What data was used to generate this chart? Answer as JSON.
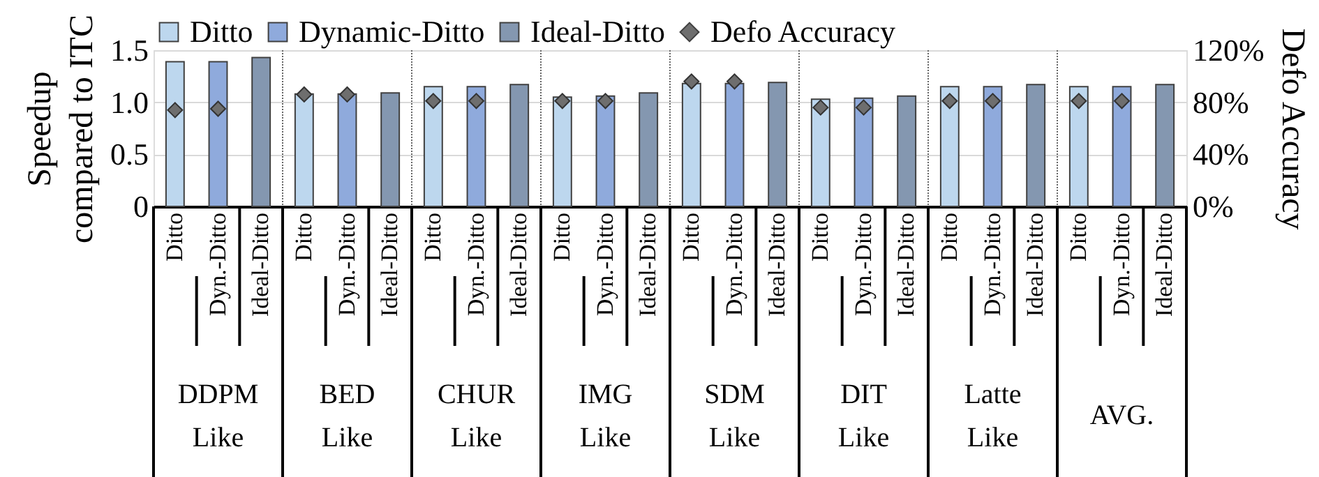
{
  "chart_data": {
    "type": "bar",
    "ylabel": "Speedup compared to ITC",
    "y2label": "Defo Accuracy",
    "categories": [
      "Ditto",
      "Dyn.-Ditto",
      "Ideal-Ditto",
      "Ditto",
      "Dyn.-Ditto",
      "Ideal-Ditto",
      "Ditto",
      "Dyn.-Ditto",
      "Ideal-Ditto",
      "Ditto",
      "Dyn.-Ditto",
      "Ideal-Ditto",
      "Ditto",
      "Dyn.-Ditto",
      "Ideal-Ditto",
      "Ditto",
      "Dyn.-Ditto",
      "Ideal-Ditto",
      "Ditto",
      "Dyn.-Ditto",
      "Ideal-Ditto",
      "Ditto",
      "Dyn.-Ditto",
      "Ideal-Ditto"
    ],
    "series": [
      {
        "name": "Ditto",
        "color": "#bdd7ee",
        "values": [
          1.39,
          null,
          null,
          1.08,
          null,
          null,
          1.15,
          null,
          null,
          1.05,
          null,
          null,
          1.18,
          null,
          null,
          1.03,
          null,
          null,
          1.15,
          null,
          null,
          1.15,
          null,
          null
        ]
      },
      {
        "name": "Dynamic-Ditto",
        "color": "#8faadc",
        "values": [
          null,
          1.39,
          null,
          null,
          1.08,
          null,
          null,
          1.15,
          null,
          null,
          1.06,
          null,
          null,
          1.18,
          null,
          null,
          1.04,
          null,
          null,
          1.15,
          null,
          null,
          1.15,
          null
        ]
      },
      {
        "name": "Ideal-Ditto",
        "color": "#8497b0",
        "values": [
          null,
          null,
          1.43,
          null,
          null,
          1.09,
          null,
          null,
          1.17,
          null,
          null,
          1.09,
          null,
          null,
          1.19,
          null,
          null,
          1.06,
          null,
          null,
          1.17,
          null,
          null,
          1.17
        ]
      },
      {
        "name": "Defo Accuracy",
        "type": "scatter",
        "axis": "y2",
        "marker": "diamond",
        "color": "#6e6e6e",
        "values": [
          74,
          75,
          null,
          86,
          86,
          null,
          81,
          81,
          null,
          81,
          81,
          null,
          96,
          96,
          null,
          76,
          76,
          null,
          81,
          81,
          null,
          81,
          81,
          null
        ]
      }
    ],
    "ylim": [
      0,
      1.5
    ],
    "yticks": [
      0,
      0.5,
      {
        "value": 1,
        "label": "1.0"
      },
      1.5
    ],
    "y2lim": [
      0,
      120
    ],
    "y2ticks": [
      {
        "value": 0,
        "label": "0%"
      },
      {
        "value": 40,
        "label": "40%"
      },
      {
        "value": 80,
        "label": "80%"
      },
      {
        "value": 120,
        "label": "120%"
      }
    ],
    "grid": "y",
    "legend": "top",
    "annotations": [
      "DDPM Like",
      "BED Like",
      "CHUR Like",
      "IMG Like",
      "SDM Like",
      "DIT Like",
      "Latte Like",
      "AVG."
    ]
  }
}
